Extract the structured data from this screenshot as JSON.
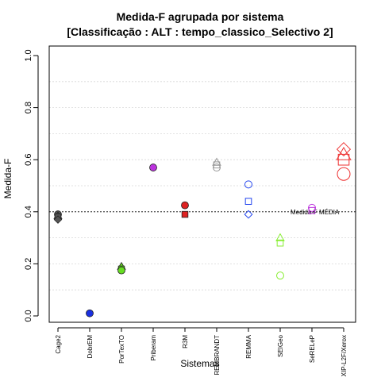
{
  "chart_data": {
    "type": "scatter",
    "title": "Medida-F agrupada por sistema",
    "subtitle": "[Classificação : ALT : tempo_classico_Selectivo 2]",
    "xlabel": "Sistemas",
    "ylabel": "Medida-F",
    "ylim": [
      0,
      1
    ],
    "yticks": [
      "0.0",
      "0.2",
      "0.4",
      "0.6",
      "0.8",
      "1.0"
    ],
    "grid": true,
    "categories": [
      "Cage2",
      "DobrEM",
      "PorTexTO",
      "Priberam",
      "R3M",
      "REMBRANDT",
      "REMMA",
      "SEIGeo",
      "SeRELeP",
      "XIP-L2F/Xerox"
    ],
    "reference_line": {
      "y": 0.4,
      "label": "Medida-F MÉDIA"
    },
    "points": [
      {
        "category": "Cage2",
        "y": 0.39,
        "shape": "circle",
        "color": "#555555",
        "filled": true,
        "size": "small"
      },
      {
        "category": "Cage2",
        "y": 0.385,
        "shape": "triangle",
        "color": "#555555",
        "filled": true,
        "size": "small"
      },
      {
        "category": "Cage2",
        "y": 0.38,
        "shape": "square",
        "color": "#555555",
        "filled": true,
        "size": "small"
      },
      {
        "category": "Cage2",
        "y": 0.37,
        "shape": "diamond",
        "color": "#555555",
        "filled": true,
        "size": "small"
      },
      {
        "category": "DobrEM",
        "y": 0.01,
        "shape": "circle",
        "color": "#1a2fe0",
        "filled": true,
        "size": "small"
      },
      {
        "category": "PorTexTO",
        "y": 0.19,
        "shape": "triangle",
        "color": "#66dd22",
        "filled": true,
        "size": "small"
      },
      {
        "category": "PorTexTO",
        "y": 0.18,
        "shape": "square",
        "color": "#66dd22",
        "filled": true,
        "size": "small"
      },
      {
        "category": "PorTexTO",
        "y": 0.175,
        "shape": "circle",
        "color": "#66dd22",
        "filled": true,
        "size": "small"
      },
      {
        "category": "Priberam",
        "y": 0.57,
        "shape": "circle",
        "color": "#bb33dd",
        "filled": true,
        "size": "small"
      },
      {
        "category": "R3M",
        "y": 0.425,
        "shape": "circle",
        "color": "#dd2222",
        "filled": true,
        "size": "small"
      },
      {
        "category": "R3M",
        "y": 0.39,
        "shape": "square",
        "color": "#dd2222",
        "filled": true,
        "size": "small"
      },
      {
        "category": "REMBRANDT",
        "y": 0.59,
        "shape": "triangle",
        "color": "#999999",
        "filled": false,
        "size": "small"
      },
      {
        "category": "REMBRANDT",
        "y": 0.58,
        "shape": "square",
        "color": "#999999",
        "filled": false,
        "size": "small"
      },
      {
        "category": "REMBRANDT",
        "y": 0.57,
        "shape": "circle",
        "color": "#999999",
        "filled": false,
        "size": "small"
      },
      {
        "category": "REMMA",
        "y": 0.505,
        "shape": "circle",
        "color": "#2244ee",
        "filled": false,
        "size": "small"
      },
      {
        "category": "REMMA",
        "y": 0.44,
        "shape": "square",
        "color": "#2244ee",
        "filled": false,
        "size": "small"
      },
      {
        "category": "REMMA",
        "y": 0.39,
        "shape": "diamond",
        "color": "#2244ee",
        "filled": false,
        "size": "small"
      },
      {
        "category": "SEIGeo",
        "y": 0.3,
        "shape": "triangle",
        "color": "#88ee33",
        "filled": false,
        "size": "small"
      },
      {
        "category": "SEIGeo",
        "y": 0.28,
        "shape": "square",
        "color": "#88ee33",
        "filled": false,
        "size": "small"
      },
      {
        "category": "SEIGeo",
        "y": 0.155,
        "shape": "circle",
        "color": "#88ee33",
        "filled": false,
        "size": "small"
      },
      {
        "category": "SeRELeP",
        "y": 0.415,
        "shape": "circle",
        "color": "#bb33dd",
        "filled": false,
        "size": "small"
      },
      {
        "category": "SeRELeP",
        "y": 0.405,
        "shape": "square",
        "color": "#bb33dd",
        "filled": false,
        "size": "small"
      },
      {
        "category": "XIP-L2F/Xerox",
        "y": 0.64,
        "shape": "diamond",
        "color": "#ee3333",
        "filled": false,
        "size": "large"
      },
      {
        "category": "XIP-L2F/Xerox",
        "y": 0.62,
        "shape": "triangle",
        "color": "#ee3333",
        "filled": false,
        "size": "large"
      },
      {
        "category": "XIP-L2F/Xerox",
        "y": 0.6,
        "shape": "square",
        "color": "#ee3333",
        "filled": false,
        "size": "large"
      },
      {
        "category": "XIP-L2F/Xerox",
        "y": 0.545,
        "shape": "circle",
        "color": "#ee3333",
        "filled": false,
        "size": "large"
      }
    ]
  }
}
